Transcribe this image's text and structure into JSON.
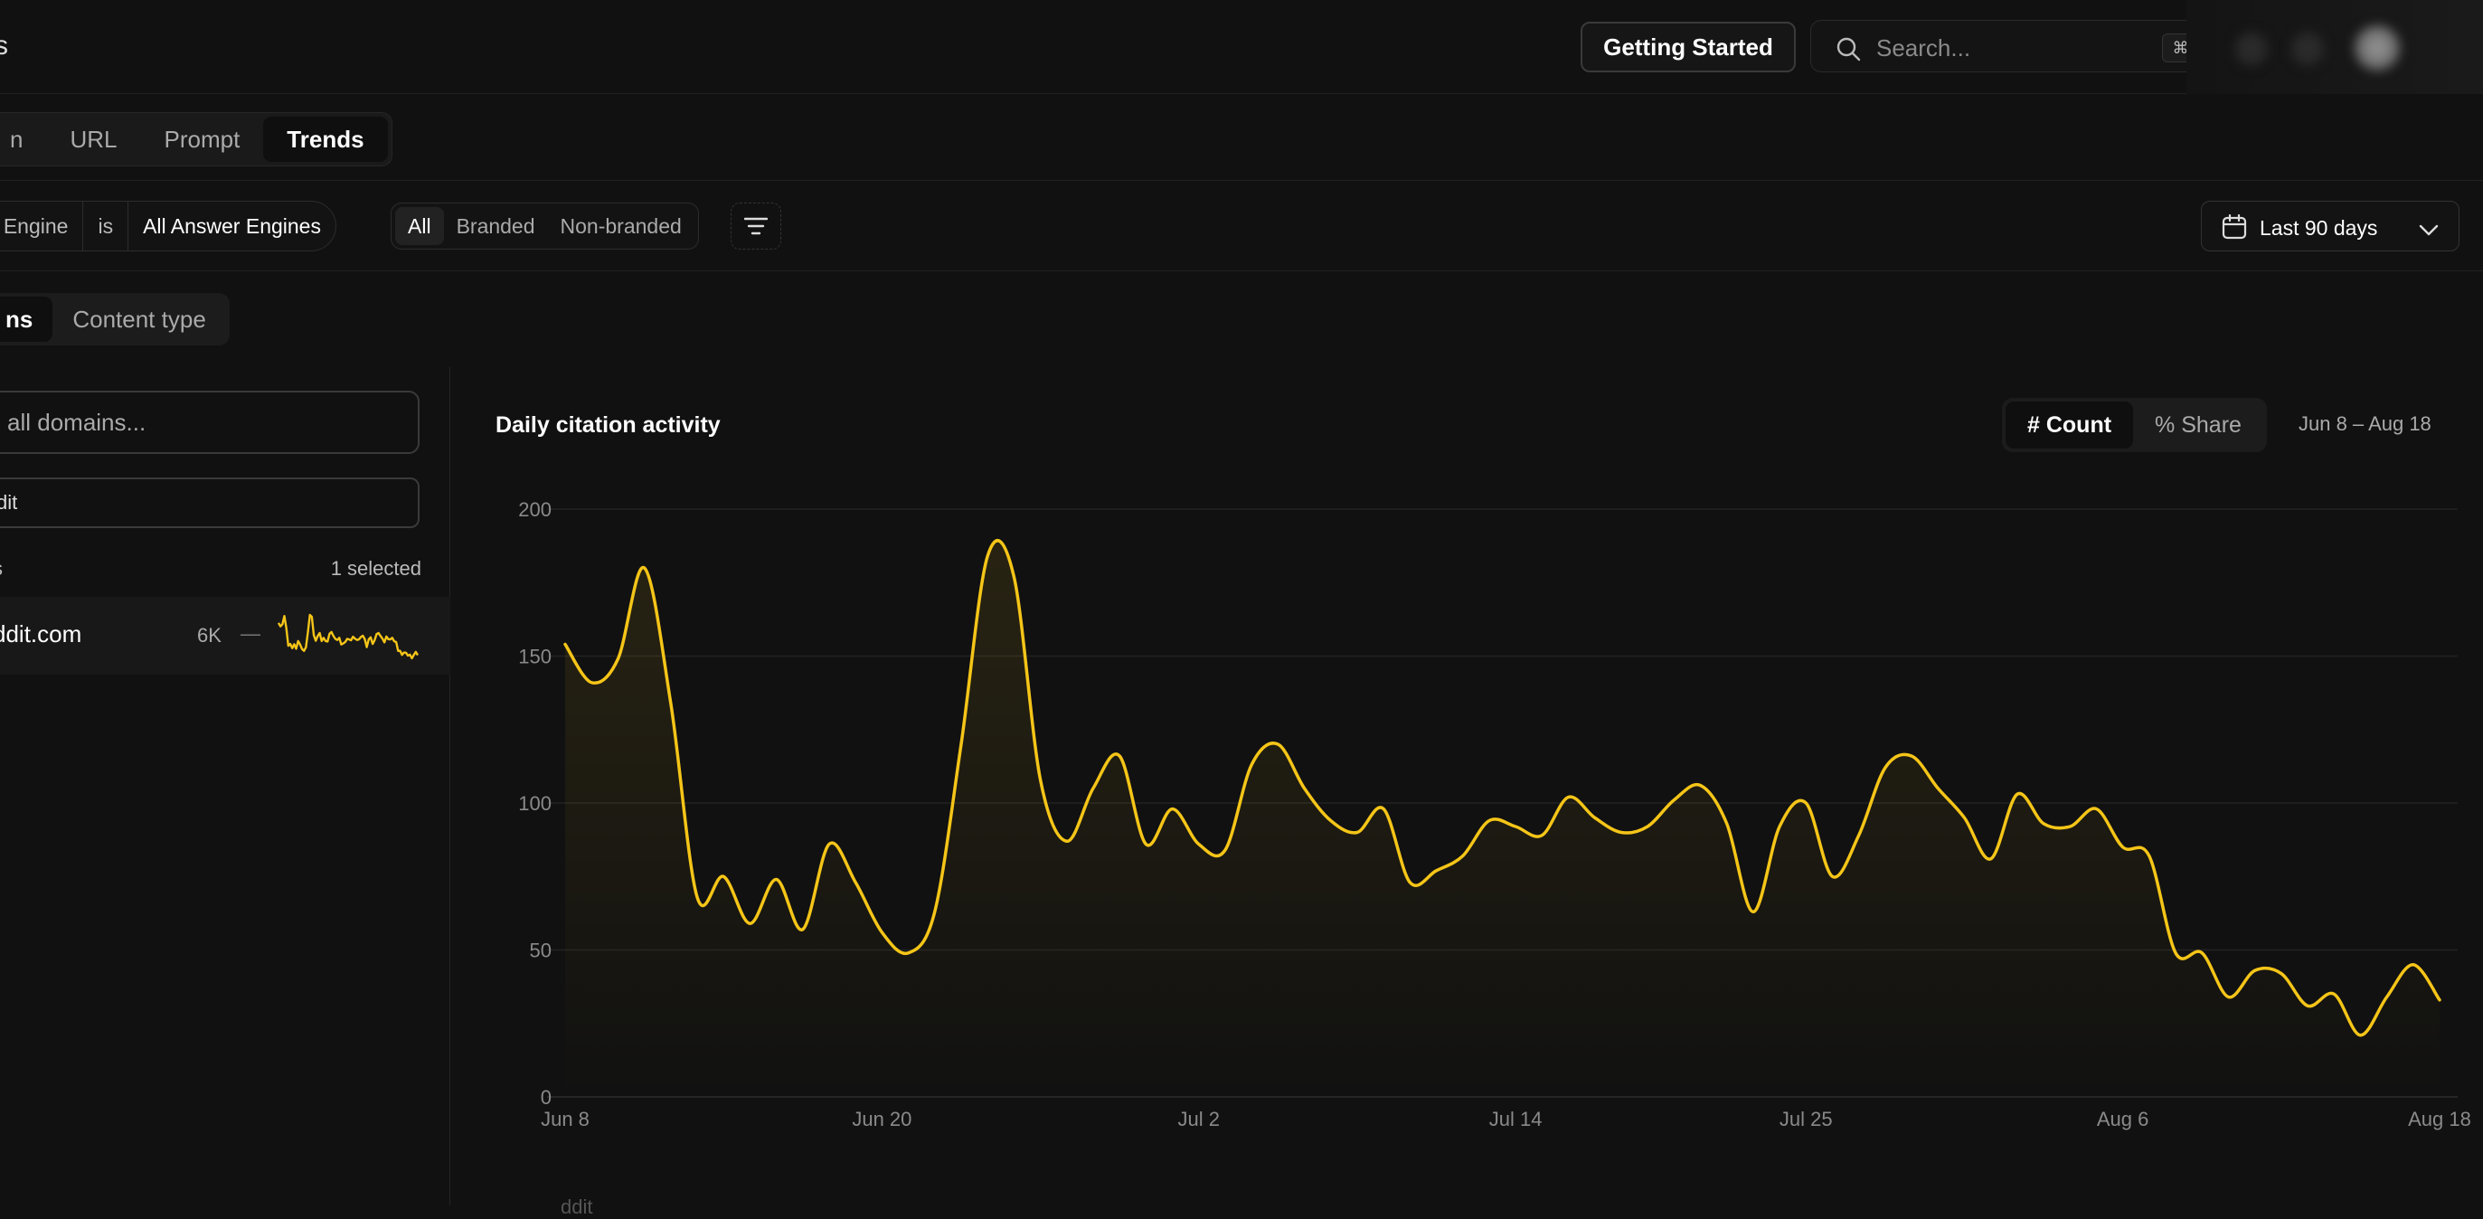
{
  "header": {
    "crumb_fragment": "s",
    "getting_started_label": "Getting Started",
    "search": {
      "placeholder": "Search...",
      "shortcut": "⌘I"
    }
  },
  "tabs": [
    {
      "label": "n",
      "active": false
    },
    {
      "label": "URL",
      "active": false
    },
    {
      "label": "Prompt",
      "active": false
    },
    {
      "label": "Trends",
      "active": true
    }
  ],
  "filters": {
    "engine_field": "er Engine",
    "engine_op": "is",
    "engine_value": "All Answer Engines",
    "brand_options": [
      {
        "label": "All",
        "active": true
      },
      {
        "label": "Branded",
        "active": false
      },
      {
        "label": "Non-branded",
        "active": false
      }
    ],
    "date_range": "Last 90 days"
  },
  "view_tabs": [
    {
      "label": "ns",
      "active": true
    },
    {
      "label": "Content type",
      "active": false
    }
  ],
  "sidebar": {
    "search_placeholder": "all domains...",
    "filter_value": "dit",
    "header_left": "s",
    "header_right": "1 selected",
    "domains": [
      {
        "name": "ddit.com",
        "count": "6K",
        "trend": "—"
      }
    ]
  },
  "chart_panel": {
    "title": "Daily citation activity",
    "metric_options": [
      {
        "label": "# Count",
        "active": true
      },
      {
        "label": "% Share",
        "active": false
      }
    ],
    "range_label": "Jun 8 – Aug 18",
    "footer_hint": "ddit"
  },
  "colors": {
    "accent": "#F5C518",
    "background": "#111111"
  },
  "chart_data": {
    "type": "area",
    "title": "Daily citation activity",
    "xlabel": "",
    "ylabel": "",
    "ylim": [
      0,
      200
    ],
    "yticks": [
      0,
      50,
      100,
      150,
      200
    ],
    "x_tick_labels": [
      "Jun 8",
      "Jun 20",
      "Jul 2",
      "Jul 14",
      "Jul 25",
      "Aug 6",
      "Aug 18"
    ],
    "x_tick_indices": [
      0,
      12,
      24,
      36,
      47,
      59,
      71
    ],
    "grid": true,
    "series": [
      {
        "values": [
          154,
          141,
          149,
          180,
          134,
          68,
          75,
          59,
          74,
          57,
          86,
          73,
          56,
          49,
          63,
          120,
          184,
          177,
          108,
          87,
          105,
          116,
          86,
          98,
          86,
          84,
          113,
          120,
          105,
          94,
          90,
          98,
          73,
          77,
          82,
          94,
          92,
          89,
          102,
          95,
          90,
          92,
          101,
          106,
          93,
          63,
          92,
          100,
          75,
          89,
          112,
          116,
          105,
          95,
          81,
          103,
          93,
          92,
          98,
          85,
          82,
          49,
          49,
          34,
          43,
          42,
          31,
          35,
          21,
          34,
          45,
          33
        ]
      }
    ]
  }
}
